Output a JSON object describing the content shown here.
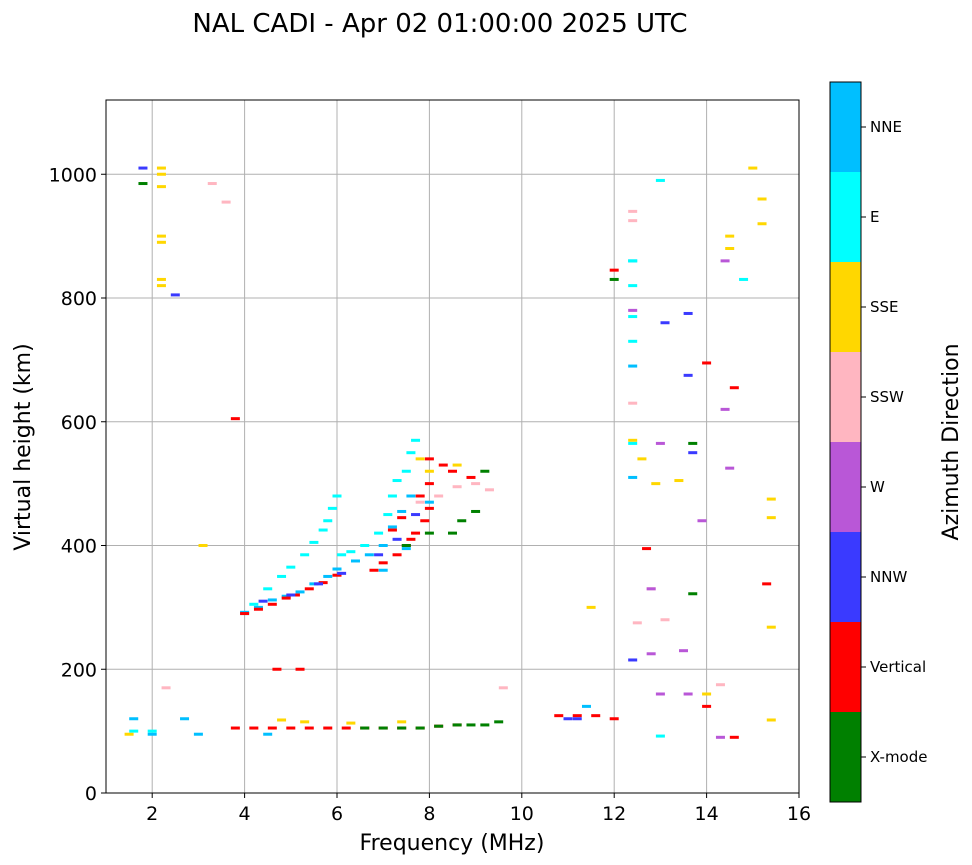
{
  "chart_data": {
    "type": "scatter",
    "title": "NAL CADI - Apr 02 01:00:00 2025 UTC",
    "xlabel": "Frequency (MHz)",
    "ylabel": "Virtual height (km)",
    "xlim": [
      1,
      16
    ],
    "ylim": [
      0,
      1120
    ],
    "xticks": [
      "2",
      "4",
      "6",
      "8",
      "10",
      "12",
      "14",
      "16"
    ],
    "yticks": [
      "0",
      "200",
      "400",
      "600",
      "800",
      "1000"
    ],
    "xtick_values": [
      2,
      4,
      6,
      8,
      10,
      12,
      14,
      16
    ],
    "ytick_values": [
      0,
      200,
      400,
      600,
      800,
      1000
    ],
    "grid": true,
    "colorbar": {
      "label": "Azimuth Direction",
      "categories": [
        "X-mode",
        "Vertical",
        "NNW",
        "W",
        "SSW",
        "SSE",
        "E",
        "NNE"
      ],
      "colors": [
        "#008000",
        "#ff0000",
        "#3a3aff",
        "#b957d7",
        "#ffb6c1",
        "#ffd700",
        "#00ffff",
        "#00bfff"
      ]
    },
    "segments": [
      {
        "category": "E",
        "points": [
          [
            4.0,
            290
          ],
          [
            4.2,
            305
          ],
          [
            4.5,
            330
          ],
          [
            4.8,
            350
          ],
          [
            5.0,
            365
          ],
          [
            5.3,
            385
          ],
          [
            5.5,
            405
          ],
          [
            5.7,
            425
          ],
          [
            5.8,
            440
          ],
          [
            5.9,
            460
          ],
          [
            6.0,
            480
          ],
          [
            6.1,
            385
          ],
          [
            6.3,
            390
          ],
          [
            6.6,
            400
          ],
          [
            6.9,
            420
          ],
          [
            7.1,
            450
          ],
          [
            7.2,
            480
          ],
          [
            7.3,
            505
          ],
          [
            7.5,
            520
          ],
          [
            7.6,
            550
          ],
          [
            7.7,
            570
          ]
        ]
      },
      {
        "category": "NNE",
        "points": [
          [
            4.0,
            292
          ],
          [
            4.3,
            300
          ],
          [
            4.6,
            312
          ],
          [
            4.9,
            318
          ],
          [
            5.2,
            325
          ],
          [
            5.5,
            338
          ],
          [
            5.8,
            350
          ],
          [
            6.0,
            362
          ],
          [
            6.4,
            375
          ],
          [
            6.7,
            385
          ],
          [
            7.0,
            400
          ],
          [
            7.2,
            430
          ],
          [
            7.4,
            455
          ],
          [
            7.6,
            480
          ],
          [
            8.0,
            470
          ],
          [
            7.5,
            395
          ],
          [
            7.0,
            360
          ]
        ]
      },
      {
        "category": "Vertical",
        "points": [
          [
            4.0,
            290
          ],
          [
            4.3,
            297
          ],
          [
            4.6,
            305
          ],
          [
            4.9,
            315
          ],
          [
            5.1,
            320
          ],
          [
            5.4,
            330
          ],
          [
            5.7,
            340
          ],
          [
            6.0,
            352
          ],
          [
            6.8,
            360
          ],
          [
            7.0,
            372
          ],
          [
            7.3,
            385
          ],
          [
            7.5,
            400
          ],
          [
            7.7,
            420
          ],
          [
            7.9,
            440
          ],
          [
            8.0,
            460
          ],
          [
            7.8,
            480
          ],
          [
            8.0,
            500
          ],
          [
            8.0,
            540
          ],
          [
            8.3,
            530
          ],
          [
            8.5,
            520
          ],
          [
            8.9,
            510
          ],
          [
            7.2,
            425
          ],
          [
            7.4,
            445
          ],
          [
            7.6,
            410
          ]
        ]
      },
      {
        "category": "NNW",
        "points": [
          [
            4.4,
            310
          ],
          [
            5.0,
            320
          ],
          [
            5.6,
            338
          ],
          [
            6.1,
            355
          ],
          [
            6.9,
            385
          ],
          [
            7.3,
            410
          ],
          [
            7.7,
            450
          ]
        ]
      },
      {
        "category": "X-mode",
        "points": [
          [
            7.5,
            400
          ],
          [
            8.0,
            420
          ],
          [
            8.5,
            420
          ],
          [
            8.7,
            440
          ],
          [
            9.0,
            455
          ],
          [
            9.2,
            520
          ]
        ]
      },
      {
        "category": "SSW",
        "points": [
          [
            7.8,
            470
          ],
          [
            8.2,
            480
          ],
          [
            8.6,
            495
          ],
          [
            9.0,
            500
          ],
          [
            9.3,
            490
          ]
        ]
      },
      {
        "category": "SSE",
        "points": [
          [
            7.8,
            540
          ],
          [
            8.0,
            520
          ],
          [
            8.6,
            530
          ]
        ]
      },
      {
        "category": "Vertical",
        "points": [
          [
            3.8,
            105
          ],
          [
            4.2,
            105
          ],
          [
            4.6,
            105
          ],
          [
            5.0,
            105
          ],
          [
            5.4,
            105
          ],
          [
            5.8,
            105
          ],
          [
            6.2,
            105
          ],
          [
            6.6,
            105
          ],
          [
            7.0,
            105
          ],
          [
            7.4,
            105
          ],
          [
            7.8,
            105
          ],
          [
            8.2,
            108
          ],
          [
            8.6,
            110
          ],
          [
            10.8,
            125
          ],
          [
            11.2,
            125
          ],
          [
            11.6,
            125
          ],
          [
            12.0,
            120
          ]
        ]
      },
      {
        "category": "X-mode",
        "points": [
          [
            6.6,
            105
          ],
          [
            7.0,
            105
          ],
          [
            7.4,
            105
          ],
          [
            7.8,
            105
          ],
          [
            8.2,
            108
          ],
          [
            8.6,
            110
          ],
          [
            8.9,
            110
          ],
          [
            9.2,
            110
          ],
          [
            9.5,
            115
          ]
        ]
      },
      {
        "category": "SSE",
        "points": [
          [
            1.5,
            95
          ],
          [
            2.2,
            1010
          ],
          [
            2.2,
            1000
          ],
          [
            2.2,
            980
          ],
          [
            2.2,
            900
          ],
          [
            2.2,
            890
          ],
          [
            2.2,
            830
          ],
          [
            2.2,
            820
          ],
          [
            3.1,
            400
          ],
          [
            4.8,
            118
          ],
          [
            5.3,
            115
          ],
          [
            6.3,
            113
          ],
          [
            7.4,
            115
          ],
          [
            11.5,
            300
          ],
          [
            12.4,
            570
          ],
          [
            12.6,
            540
          ],
          [
            12.9,
            500
          ],
          [
            13.4,
            505
          ],
          [
            14.0,
            160
          ],
          [
            14.5,
            900
          ],
          [
            14.5,
            880
          ],
          [
            15.0,
            1010
          ],
          [
            15.2,
            960
          ],
          [
            15.2,
            920
          ],
          [
            15.4,
            475
          ],
          [
            15.4,
            445
          ],
          [
            15.4,
            268
          ],
          [
            15.4,
            118
          ]
        ]
      },
      {
        "category": "NNE",
        "points": [
          [
            1.6,
            120
          ],
          [
            2.0,
            95
          ],
          [
            2.7,
            120
          ],
          [
            3.0,
            95
          ],
          [
            4.5,
            95
          ],
          [
            11.4,
            140
          ],
          [
            12.4,
            860
          ],
          [
            12.4,
            690
          ],
          [
            12.4,
            510
          ]
        ]
      },
      {
        "category": "E",
        "points": [
          [
            1.6,
            100
          ],
          [
            2.0,
            100
          ],
          [
            12.4,
            860
          ],
          [
            12.4,
            820
          ],
          [
            12.4,
            770
          ],
          [
            12.4,
            730
          ],
          [
            12.4,
            565
          ],
          [
            13.0,
            990
          ],
          [
            14.8,
            830
          ],
          [
            13.0,
            92
          ]
        ]
      },
      {
        "category": "SSW",
        "points": [
          [
            2.3,
            170
          ],
          [
            3.3,
            985
          ],
          [
            3.6,
            955
          ],
          [
            12.4,
            940
          ],
          [
            12.4,
            925
          ],
          [
            12.4,
            630
          ],
          [
            12.5,
            275
          ],
          [
            12.8,
            330
          ],
          [
            13.1,
            280
          ],
          [
            14.3,
            175
          ],
          [
            9.6,
            170
          ]
        ]
      },
      {
        "category": "W",
        "points": [
          [
            12.4,
            780
          ],
          [
            12.8,
            330
          ],
          [
            12.8,
            225
          ],
          [
            13.0,
            160
          ],
          [
            13.0,
            565
          ],
          [
            13.5,
            230
          ],
          [
            13.6,
            160
          ],
          [
            13.9,
            440
          ],
          [
            14.4,
            860
          ],
          [
            14.4,
            620
          ],
          [
            14.5,
            525
          ],
          [
            14.3,
            90
          ]
        ]
      },
      {
        "category": "NNW",
        "points": [
          [
            1.8,
            1010
          ],
          [
            2.5,
            805
          ],
          [
            13.1,
            760
          ],
          [
            13.6,
            675
          ],
          [
            13.6,
            775
          ],
          [
            13.7,
            550
          ],
          [
            12.4,
            215
          ],
          [
            11.0,
            120
          ],
          [
            11.2,
            120
          ]
        ]
      },
      {
        "category": "Vertical",
        "points": [
          [
            3.8,
            605
          ],
          [
            4.7,
            200
          ],
          [
            5.2,
            200
          ],
          [
            12.0,
            845
          ],
          [
            12.7,
            395
          ],
          [
            14.0,
            140
          ],
          [
            14.0,
            695
          ],
          [
            14.6,
            655
          ],
          [
            14.6,
            90
          ],
          [
            15.3,
            338
          ]
        ]
      },
      {
        "category": "X-mode",
        "points": [
          [
            13.7,
            565
          ],
          [
            13.7,
            322
          ],
          [
            12.0,
            830
          ],
          [
            1.8,
            985
          ]
        ]
      }
    ]
  }
}
